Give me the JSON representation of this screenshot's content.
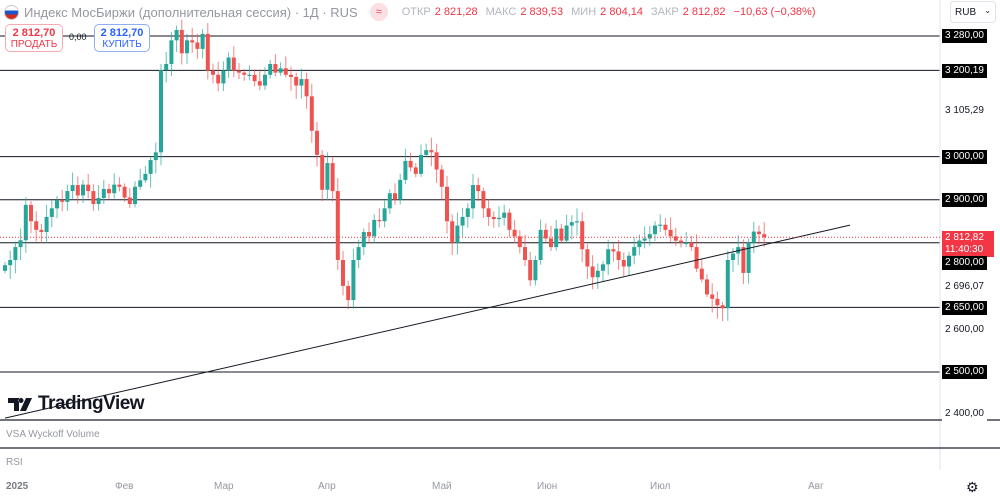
{
  "header": {
    "title": "Индекс МосБиржи (дополнительная сессия) · 1Д · RUS",
    "ohlc": [
      {
        "key": "ОТКР",
        "value": "2 821,28"
      },
      {
        "key": "МАКС",
        "value": "2 839,53"
      },
      {
        "key": "МИН",
        "value": "2 804,14"
      },
      {
        "key": "ЗАКР",
        "value": "2 812,82"
      }
    ],
    "change": "−10,63 (−0,38%)",
    "badge": "≈"
  },
  "trade": {
    "sell_price": "2 812,70",
    "sell_label": "ПРОДАТЬ",
    "buy_price": "2 812,70",
    "buy_label": "КУПИТЬ",
    "spread": "0,00"
  },
  "currency": "RUB",
  "price_axis": {
    "boxed": [
      "3 280,00",
      "3 200,19",
      "3 000,00",
      "2 900,00",
      "2 800,00",
      "2 650,00",
      "2 500,00"
    ],
    "plain": [
      "3 105,29",
      "2 696,07",
      "2 600,00",
      "2 400,00"
    ],
    "current_price": "2 812,82",
    "countdown": "11:40:30"
  },
  "logo": "TradingView",
  "panes": {
    "volume": "VSA Wyckoff Volume",
    "rsi": "RSI"
  },
  "time_axis": [
    "2025",
    "Фев",
    "Мар",
    "Апр",
    "Май",
    "Июн",
    "Июл",
    "Авг"
  ],
  "colors": {
    "up": "#26a69a",
    "down": "#ef5350",
    "current": "#f23645"
  },
  "chart_data": {
    "type": "candlestick",
    "title": "Индекс МосБиржи (дополнительная сессия)",
    "interval": "1D",
    "ylim": [
      2380,
      3300
    ],
    "levels": [
      3280,
      3200.19,
      3000,
      2900,
      2800,
      2650,
      2500
    ],
    "current_price": 2812.82,
    "trendline": {
      "start": [
        0,
        2393
      ],
      "end": [
        162.5,
        2841
      ]
    },
    "first_open": 2735,
    "closes": [
      2748,
      2760,
      2790,
      2806,
      2888,
      2850,
      2830,
      2825,
      2860,
      2880,
      2899,
      2895,
      2920,
      2934,
      2910,
      2935,
      2920,
      2890,
      2904,
      2925,
      2915,
      2935,
      2930,
      2905,
      2890,
      2930,
      2945,
      2960,
      2992,
      3010,
      3201,
      3215,
      3270,
      3294,
      3240,
      3270,
      3265,
      3250,
      3285,
      3200,
      3190,
      3170,
      3200,
      3230,
      3200,
      3195,
      3190,
      3190,
      3175,
      3165,
      3190,
      3215,
      3195,
      3205,
      3190,
      3185,
      3165,
      3180,
      3140,
      3060,
      3004,
      2923,
      2985,
      2920,
      2760,
      2700,
      2667,
      2760,
      2790,
      2825,
      2815,
      2853,
      2850,
      2880,
      2915,
      2900,
      2946,
      2990,
      2975,
      2960,
      3004,
      3015,
      3010,
      2970,
      2930,
      2850,
      2800,
      2840,
      2860,
      2880,
      2934,
      2920,
      2880,
      2860,
      2855,
      2858,
      2870,
      2830,
      2815,
      2790,
      2760,
      2713,
      2760,
      2830,
      2810,
      2790,
      2833,
      2805,
      2840,
      2848,
      2850,
      2785,
      2745,
      2720,
      2735,
      2750,
      2785,
      2780,
      2760,
      2745,
      2770,
      2790,
      2805,
      2810,
      2820,
      2840,
      2842,
      2830,
      2815,
      2805,
      2800,
      2800,
      2790,
      2740,
      2715,
      2680,
      2670,
      2655,
      2648,
      2760,
      2775,
      2790,
      2730,
      2800,
      2826,
      2820,
      2812.82
    ]
  }
}
